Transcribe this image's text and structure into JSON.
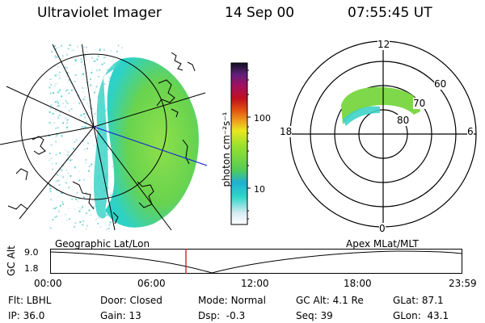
{
  "header": {
    "instrument": "Ultraviolet Imager",
    "date": "14 Sep 00",
    "time": "07:55:45 UT"
  },
  "colorbar": {
    "unit_label": "photon cm⁻²s⁻¹",
    "ticks": [
      "100",
      "10"
    ]
  },
  "polar_plot": {
    "mlt_labels": [
      "12",
      "18",
      "6",
      "0"
    ],
    "lat_labels": [
      "60",
      "70",
      "80"
    ]
  },
  "timeline": {
    "left_title": "Geographic Lat/Lon",
    "right_title": "Apex MLat/MLT",
    "y_axis_label": "GC Alt",
    "y_ticks": [
      "9.0",
      "1.8"
    ],
    "x_ticks": [
      "00:00",
      "06:00",
      "12:00",
      "18:00",
      "23:59"
    ],
    "marker_color": "#d01010"
  },
  "footer": {
    "rows": [
      [
        {
          "label": "Flt:",
          "value": "LBHL"
        },
        {
          "label": "Door:",
          "value": "Closed"
        },
        {
          "label": "Mode:",
          "value": "Normal"
        },
        {
          "label": "GC Alt:",
          "value": "4.1 Re"
        },
        {
          "label": "GLat:",
          "value": "87.1"
        }
      ],
      [
        {
          "label": "IP:",
          "value": "36.0"
        },
        {
          "label": "Gain:",
          "value": "13"
        },
        {
          "label": "Dsp:",
          "value": "-0.3"
        },
        {
          "label": "Seq:",
          "value": "39"
        },
        {
          "label": "GLon:",
          "value": "43.1"
        }
      ]
    ]
  },
  "colors": {
    "aurora_green": "#7fd84a",
    "aurora_cyan": "#3ed3c8",
    "track_blue": "#1a2fd0"
  }
}
